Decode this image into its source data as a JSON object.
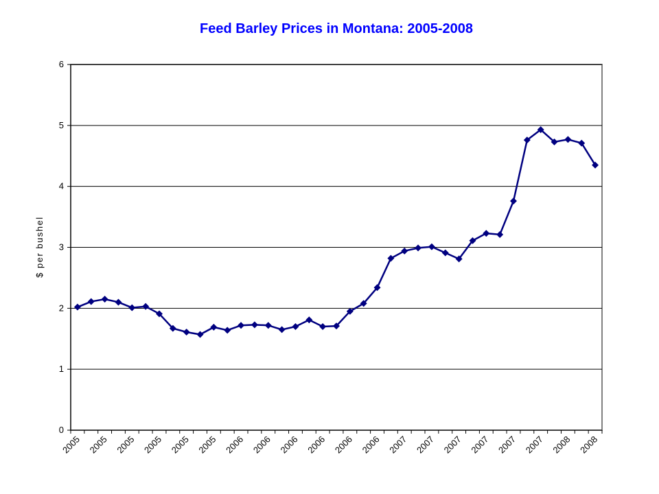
{
  "chart_data": {
    "type": "line",
    "title": "Feed Barley Prices in Montana: 2005-2008",
    "y_label": "$ per bushel",
    "categories": [
      "2005",
      null,
      "2005",
      null,
      "2005",
      null,
      "2005",
      null,
      "2005",
      null,
      "2005",
      null,
      "2006",
      null,
      "2006",
      null,
      "2006",
      null,
      "2006",
      null,
      "2006",
      null,
      "2006",
      null,
      "2007",
      null,
      "2007",
      null,
      "2007",
      null,
      "2007",
      null,
      "2007",
      null,
      "2007",
      null,
      "2008",
      null,
      "2008"
    ],
    "series": [
      {
        "name": "Feed Barley",
        "color": "#000080",
        "values": [
          2.02,
          2.11,
          2.15,
          2.1,
          2.01,
          2.03,
          1.91,
          1.67,
          1.61,
          1.57,
          1.69,
          1.64,
          1.72,
          1.73,
          1.72,
          1.65,
          1.7,
          1.81,
          1.7,
          1.71,
          1.95,
          2.08,
          2.34,
          2.82,
          2.94,
          2.99,
          3.01,
          2.91,
          2.81,
          3.11,
          3.23,
          3.21,
          3.76,
          4.76,
          4.93,
          4.73,
          4.77,
          4.71,
          4.35
        ]
      }
    ],
    "ylim": [
      0,
      6
    ],
    "yticks": [
      0,
      1,
      2,
      3,
      4,
      5,
      6
    ],
    "grid": true,
    "title_color": "#0000ff"
  }
}
